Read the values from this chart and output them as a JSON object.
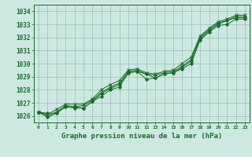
{
  "title": "Graphe pression niveau de la mer (hPa)",
  "bg_color": "#cce8e0",
  "grid_color": "#99bbbb",
  "line_color": "#1a6b2a",
  "x_labels": [
    "0",
    "1",
    "2",
    "3",
    "4",
    "5",
    "6",
    "7",
    "8",
    "9",
    "10",
    "11",
    "12",
    "13",
    "14",
    "15",
    "16",
    "17",
    "18",
    "19",
    "20",
    "21",
    "22",
    "23"
  ],
  "ylim": [
    1025.5,
    1034.5
  ],
  "yticks": [
    1026,
    1027,
    1028,
    1029,
    1030,
    1031,
    1032,
    1033,
    1034
  ],
  "series": [
    [
      1026.3,
      1026.2,
      1026.2,
      1026.7,
      1026.7,
      1026.6,
      1027.1,
      1027.7,
      1028.1,
      1028.4,
      1029.3,
      1029.4,
      1029.2,
      1028.9,
      1029.2,
      1029.3,
      1029.7,
      1030.2,
      1031.9,
      1032.5,
      1033.0,
      1033.3,
      1033.5,
      1033.5
    ],
    [
      1026.3,
      1025.9,
      1026.2,
      1026.7,
      1026.6,
      1026.6,
      1027.1,
      1027.5,
      1028.0,
      1028.2,
      1029.3,
      1029.4,
      1028.8,
      1028.9,
      1029.2,
      1029.3,
      1029.6,
      1030.0,
      1031.8,
      1032.4,
      1032.9,
      1033.0,
      1033.4,
      1033.4
    ],
    [
      1026.3,
      1026.0,
      1026.3,
      1026.8,
      1026.7,
      1026.8,
      1027.2,
      1027.8,
      1028.2,
      1028.5,
      1029.4,
      1029.5,
      1029.2,
      1029.1,
      1029.3,
      1029.4,
      1029.8,
      1030.3,
      1032.0,
      1032.6,
      1033.1,
      1033.3,
      1033.6,
      1033.6
    ],
    [
      1026.3,
      1026.1,
      1026.5,
      1026.9,
      1026.9,
      1026.9,
      1027.3,
      1028.0,
      1028.4,
      1028.7,
      1029.5,
      1029.6,
      1029.3,
      1029.2,
      1029.4,
      1029.5,
      1030.0,
      1030.5,
      1032.1,
      1032.7,
      1033.2,
      1033.4,
      1033.7,
      1033.7
    ]
  ],
  "marker_styles": [
    "D",
    "D",
    "+",
    "x"
  ],
  "line_styles": [
    "-",
    "-",
    "-",
    "-"
  ]
}
